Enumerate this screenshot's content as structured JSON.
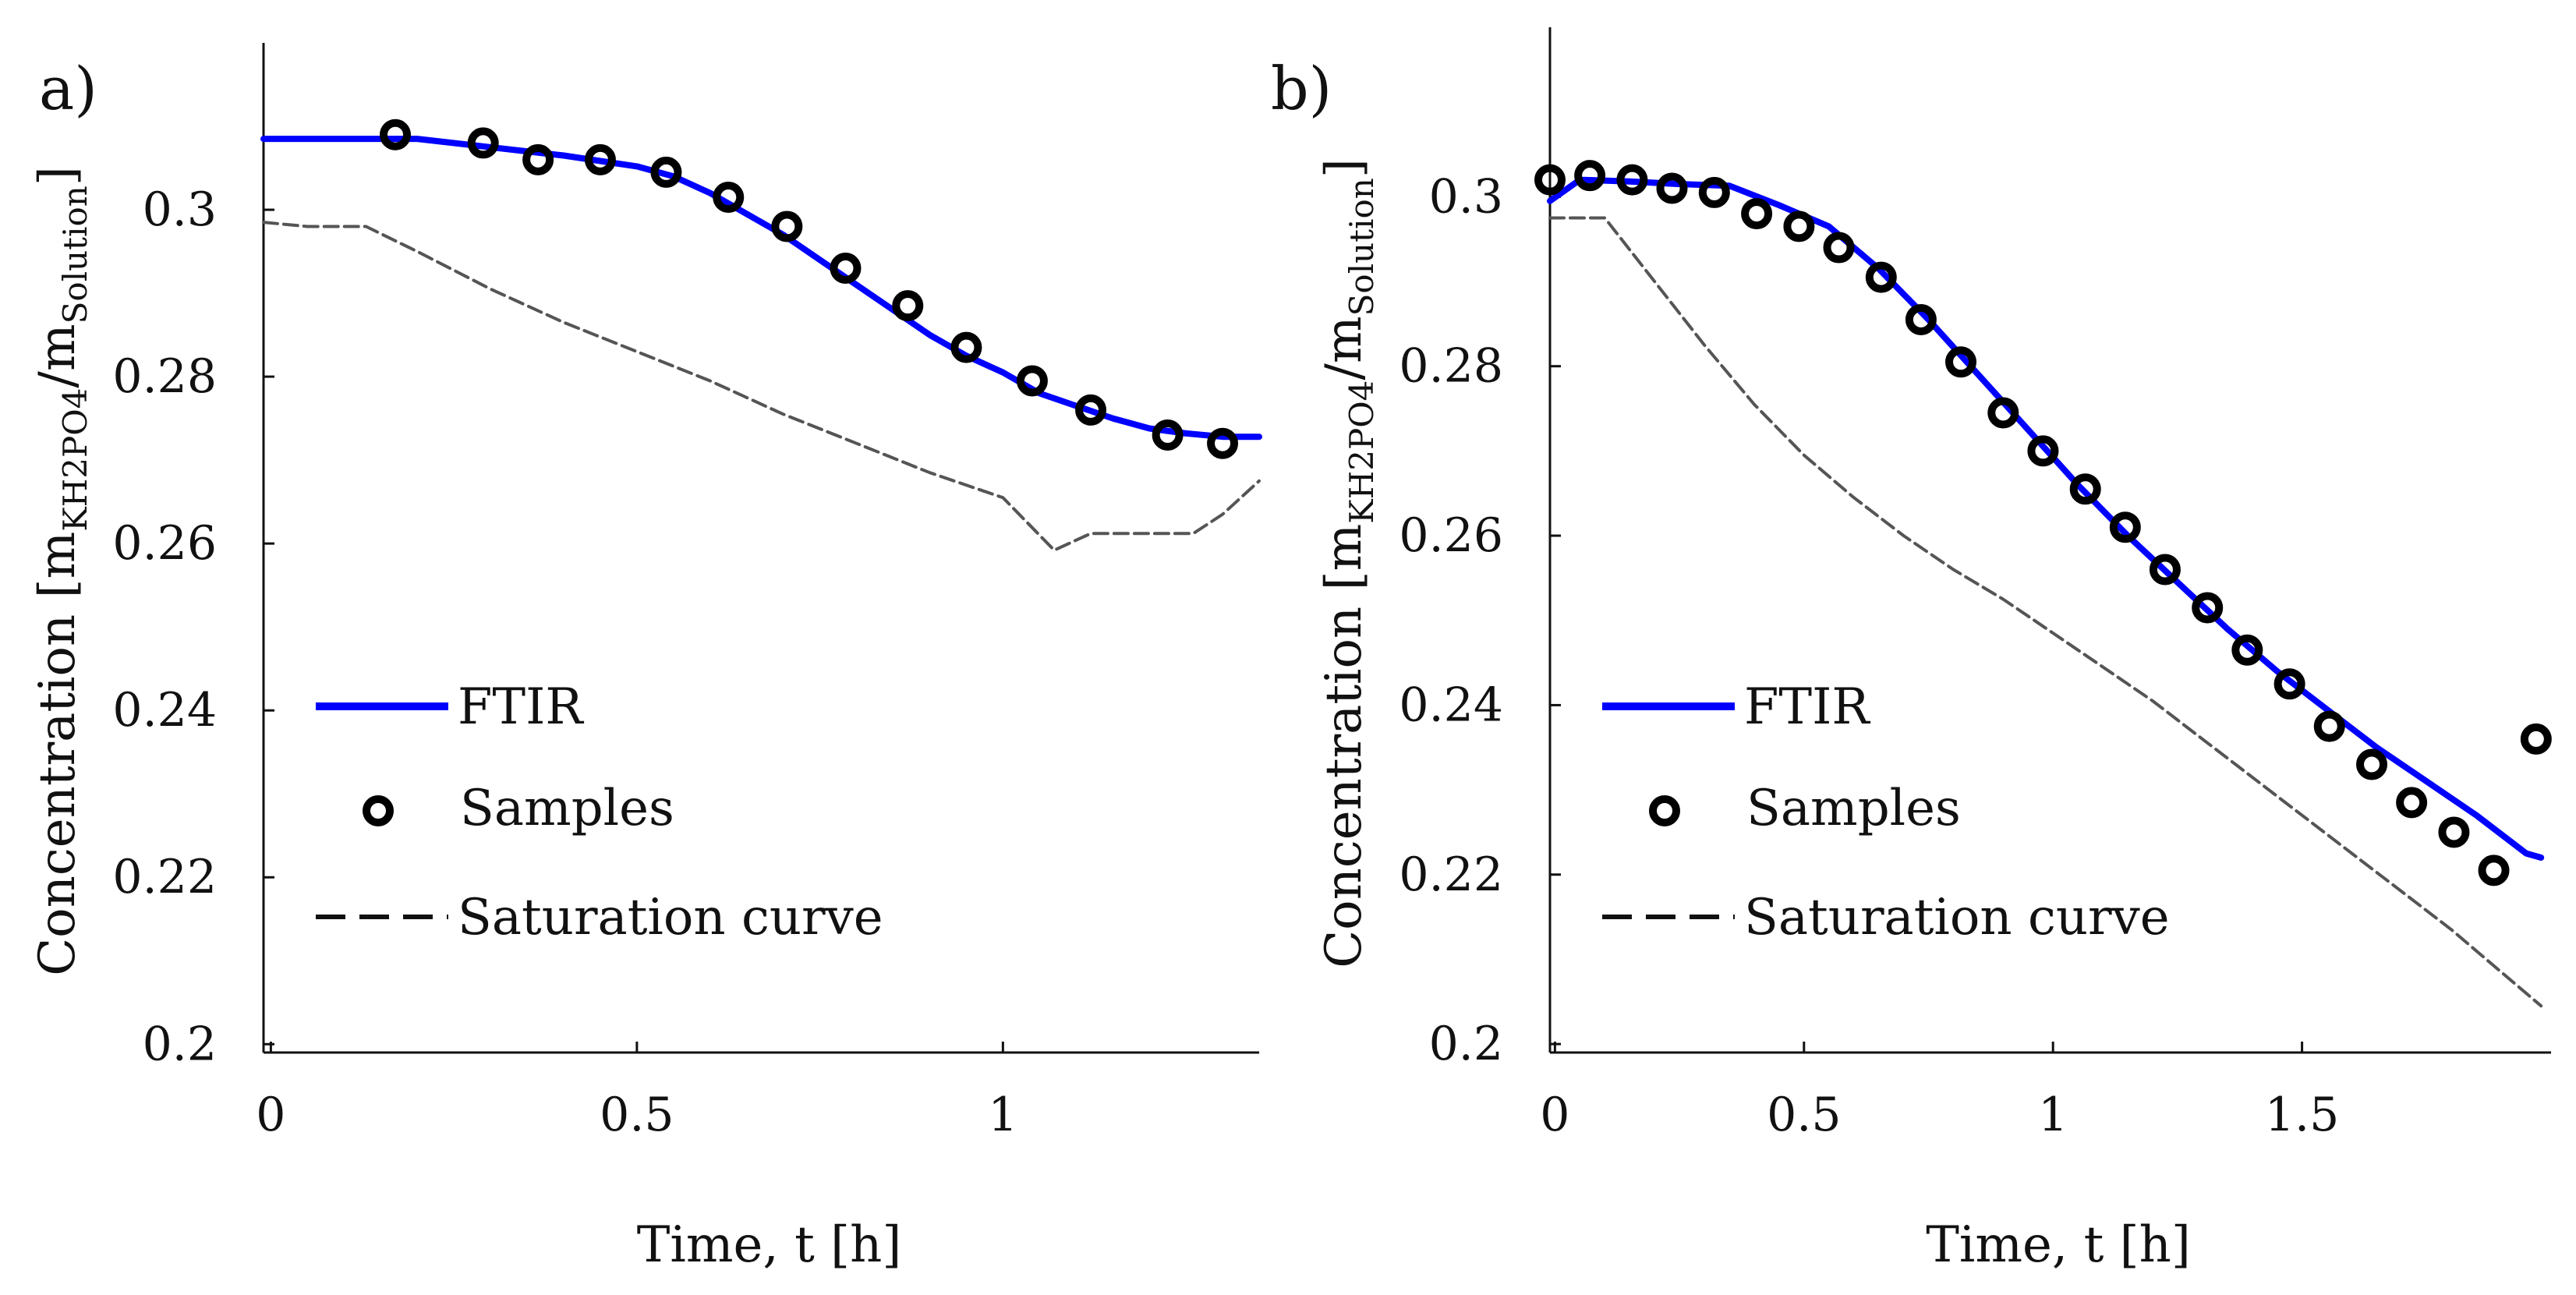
{
  "chart_data": [
    {
      "type": "line",
      "panel_label": "a)",
      "xlabel": "Time, t [h]",
      "ylabel": {
        "main": "Concentration [m",
        "sub1": "KH2PO4",
        "mid": "/m",
        "sub2": "Solution",
        "end": "]"
      },
      "xlim": [
        -0.01,
        1.35
      ],
      "ylim": [
        0.199,
        0.32
      ],
      "xticks": [
        {
          "value": 0,
          "label": "0"
        },
        {
          "value": 0.5,
          "label": "0.5"
        },
        {
          "value": 1,
          "label": "1"
        }
      ],
      "yticks": [
        {
          "value": 0.2,
          "label": "0.2"
        },
        {
          "value": 0.22,
          "label": "0.22"
        },
        {
          "value": 0.24,
          "label": "0.24"
        },
        {
          "value": 0.26,
          "label": "0.26"
        },
        {
          "value": 0.28,
          "label": "0.28"
        },
        {
          "value": 0.3,
          "label": "0.3"
        }
      ],
      "grid": false,
      "legend_position": "bottom-left",
      "series": [
        {
          "name": "FTIR",
          "kind": "line",
          "color": "#0000ff",
          "x": [
            -0.01,
            0.05,
            0.1,
            0.2,
            0.3,
            0.4,
            0.5,
            0.55,
            0.6,
            0.65,
            0.7,
            0.75,
            0.8,
            0.85,
            0.9,
            0.95,
            1.0,
            1.05,
            1.1,
            1.15,
            1.2,
            1.25,
            1.3,
            1.35
          ],
          "y": [
            0.3085,
            0.3085,
            0.3085,
            0.3085,
            0.3075,
            0.3065,
            0.3052,
            0.304,
            0.302,
            0.2995,
            0.297,
            0.294,
            0.291,
            0.288,
            0.285,
            0.2825,
            0.2805,
            0.278,
            0.2765,
            0.275,
            0.2738,
            0.2732,
            0.2728,
            0.2728
          ]
        },
        {
          "name": "Samples",
          "kind": "scatter",
          "color": "#000000",
          "x": [
            0.17,
            0.29,
            0.365,
            0.45,
            0.54,
            0.625,
            0.705,
            0.785,
            0.87,
            0.95,
            1.04,
            1.12,
            1.225,
            1.3
          ],
          "y": [
            0.309,
            0.308,
            0.306,
            0.306,
            0.3045,
            0.3015,
            0.298,
            0.293,
            0.2885,
            0.2835,
            0.2795,
            0.276,
            0.273,
            0.272
          ]
        },
        {
          "name": "Saturation curve",
          "kind": "dashed",
          "color": "#000000",
          "x": [
            -0.01,
            0.05,
            0.13,
            0.2,
            0.3,
            0.4,
            0.5,
            0.6,
            0.7,
            0.8,
            0.9,
            1.0,
            1.07,
            1.12,
            1.2,
            1.26,
            1.3,
            1.35
          ],
          "y": [
            0.2985,
            0.298,
            0.298,
            0.295,
            0.2905,
            0.2865,
            0.283,
            0.2795,
            0.2755,
            0.272,
            0.2685,
            0.2655,
            0.2592,
            0.2612,
            0.2612,
            0.2612,
            0.2635,
            0.2675
          ]
        }
      ]
    },
    {
      "type": "line",
      "panel_label": "b)",
      "xlabel": "Time, t [h]",
      "ylabel": {
        "main": "Concentration [m",
        "sub1": "KH2PO4",
        "mid": "/m",
        "sub2": "Solution",
        "end": "]"
      },
      "xlim": [
        -0.01,
        2.0
      ],
      "ylim": [
        0.199,
        0.32
      ],
      "xticks": [
        {
          "value": 0,
          "label": "0"
        },
        {
          "value": 0.5,
          "label": "0.5"
        },
        {
          "value": 1,
          "label": "1"
        },
        {
          "value": 1.5,
          "label": "1.5"
        }
      ],
      "yticks": [
        {
          "value": 0.2,
          "label": "0.2"
        },
        {
          "value": 0.22,
          "label": "0.22"
        },
        {
          "value": 0.24,
          "label": "0.24"
        },
        {
          "value": 0.26,
          "label": "0.26"
        },
        {
          "value": 0.28,
          "label": "0.28"
        },
        {
          "value": 0.3,
          "label": "0.3"
        }
      ],
      "grid": false,
      "legend_position": "bottom-left",
      "series": [
        {
          "name": "FTIR",
          "kind": "line",
          "color": "#0000ff",
          "x": [
            -0.01,
            0.05,
            0.15,
            0.25,
            0.35,
            0.45,
            0.55,
            0.65,
            0.75,
            0.85,
            0.95,
            1.05,
            1.15,
            1.25,
            1.35,
            1.45,
            1.55,
            1.65,
            1.75,
            1.85,
            1.95,
            1.98
          ],
          "y": [
            0.2995,
            0.302,
            0.3018,
            0.3015,
            0.3013,
            0.299,
            0.2965,
            0.2915,
            0.2855,
            0.279,
            0.2725,
            0.266,
            0.26,
            0.2545,
            0.249,
            0.244,
            0.2395,
            0.235,
            0.231,
            0.227,
            0.2225,
            0.222
          ]
        },
        {
          "name": "Samples",
          "kind": "scatter",
          "color": "#000000",
          "x": [
            -0.01,
            0.07,
            0.155,
            0.235,
            0.32,
            0.405,
            0.49,
            0.57,
            0.655,
            0.735,
            0.815,
            0.9,
            0.98,
            1.065,
            1.145,
            1.225,
            1.31,
            1.39,
            1.475,
            1.555,
            1.64,
            1.72,
            1.805,
            1.885,
            1.97
          ],
          "y": [
            0.302,
            0.3025,
            0.302,
            0.301,
            0.3005,
            0.298,
            0.2965,
            0.294,
            0.2905,
            0.2855,
            0.2805,
            0.2745,
            0.27,
            0.2655,
            0.261,
            0.256,
            0.2515,
            0.2465,
            0.2425,
            0.2375,
            0.233,
            0.2285,
            0.225,
            0.2205,
            0.236
          ]
        },
        {
          "name": "Saturation curve",
          "kind": "dashed",
          "color": "#000000",
          "x": [
            -0.01,
            0.05,
            0.1,
            0.2,
            0.3,
            0.4,
            0.5,
            0.6,
            0.7,
            0.8,
            0.9,
            1.0,
            1.1,
            1.2,
            1.3,
            1.4,
            1.5,
            1.6,
            1.7,
            1.8,
            1.9,
            1.98
          ],
          "y": [
            0.2975,
            0.2975,
            0.2975,
            0.29,
            0.2825,
            0.2755,
            0.2695,
            0.2645,
            0.26,
            0.256,
            0.2525,
            0.2485,
            0.2445,
            0.2405,
            0.236,
            0.2315,
            0.227,
            0.2225,
            0.218,
            0.2135,
            0.2085,
            0.2045
          ]
        }
      ]
    }
  ]
}
